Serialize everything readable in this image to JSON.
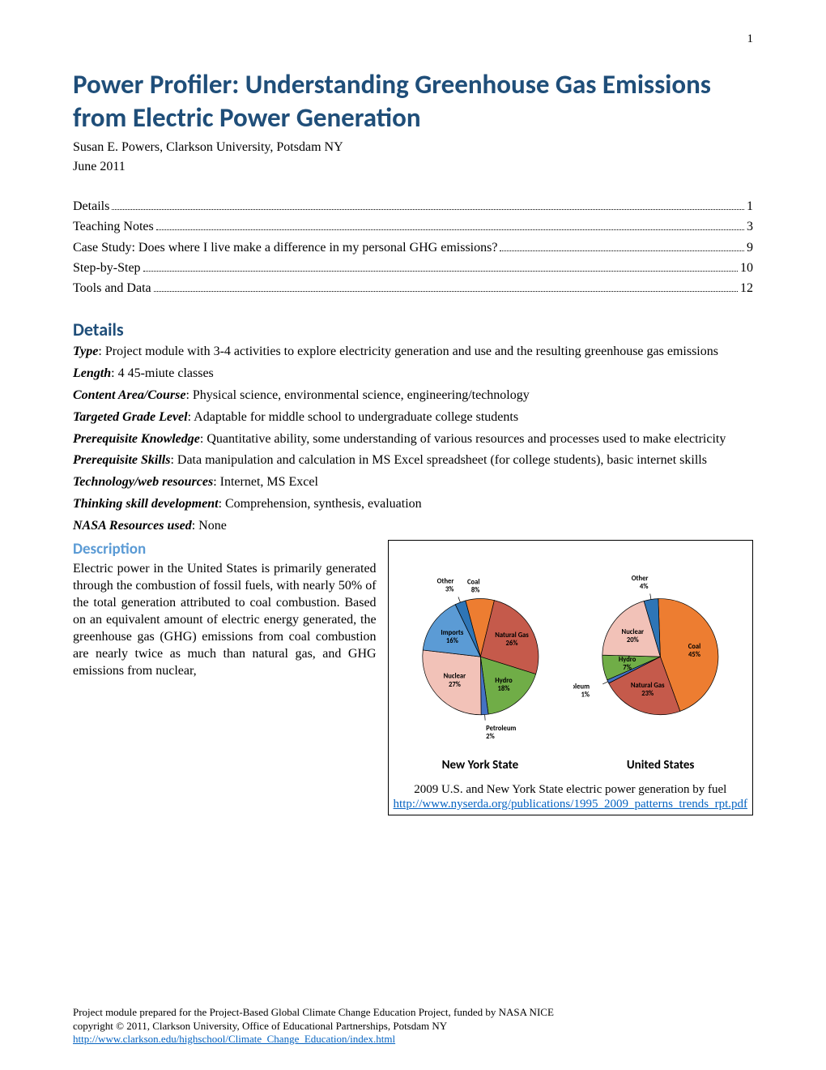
{
  "page_number": "1",
  "title": "Power Profiler: Understanding Greenhouse Gas Emissions from Electric Power Generation",
  "author": "Susan E. Powers, Clarkson University, Potsdam NY",
  "date": "June 2011",
  "toc": [
    {
      "label": "Details",
      "page": "1"
    },
    {
      "label": "Teaching Notes",
      "page": "3"
    },
    {
      "label": "Case Study: Does where I live make a difference in my personal GHG emissions?",
      "page": "9"
    },
    {
      "label": "Step-by-Step",
      "page": "10"
    },
    {
      "label": "Tools and Data",
      "page": "12"
    }
  ],
  "details_heading": "Details",
  "details": [
    {
      "label": "Type",
      "text": ":  Project module with 3-4 activities to explore electricity generation and use and the resulting greenhouse gas emissions"
    },
    {
      "label": "Length",
      "text": ":  4 45-miute classes"
    },
    {
      "label": "Content Area/Course",
      "text": ": Physical science, environmental science, engineering/technology"
    },
    {
      "label": "Targeted Grade Level",
      "text": ":  Adaptable for middle school to undergraduate college students"
    },
    {
      "label": "Prerequisite Knowledge",
      "text": ": Quantitative ability, some understanding of various resources and processes used to make electricity"
    },
    {
      "label": "Prerequisite Skills",
      "text": ": Data manipulation and calculation in MS Excel spreadsheet (for college students), basic internet skills"
    },
    {
      "label": "Technology/web resources",
      "text": ": Internet, MS Excel"
    },
    {
      "label": "Thinking skill development",
      "text": ": Comprehension, synthesis, evaluation"
    },
    {
      "label": "NASA Resources used",
      "text": ": None"
    }
  ],
  "description_heading": "Description",
  "description_text": "Electric power in the United States is primarily generated through the combustion of fossil fuels, with nearly 50% of the total generation attributed to coal combustion.  Based on an equivalent amount of electric energy generated, the greenhouse gas (GHG) emissions from coal combustion are nearly twice as much than natural gas, and GHG emissions from nuclear,",
  "charts": {
    "pie1": {
      "title": "New York State",
      "slices": [
        {
          "name": "Coal",
          "value": 8,
          "color": "#ed7d31",
          "label_r": 1.22,
          "leader": false
        },
        {
          "name": "Natural Gas",
          "value": 26,
          "color": "#c55a4b",
          "label_r": 0.62,
          "leader": false
        },
        {
          "name": "Hydro",
          "value": 18,
          "color": "#70ad47",
          "label_r": 0.62,
          "leader": false
        },
        {
          "name": "Petroleum",
          "value": 2,
          "color": "#4472c4",
          "label_r": 1.3,
          "leader": true
        },
        {
          "name": "Nuclear",
          "value": 27,
          "color": "#f2c2b8",
          "label_r": 0.6,
          "leader": false
        },
        {
          "name": "Imports",
          "value": 16,
          "color": "#5b9bd5",
          "label_r": 0.6,
          "leader": false
        },
        {
          "name": "Other",
          "value": 3,
          "color": "#2e75b6",
          "label_r": 1.32,
          "leader": true
        }
      ],
      "start_angle": -105,
      "radius": 100,
      "stroke": "#000000",
      "stroke_width": 1
    },
    "pie2": {
      "title": "United States",
      "slices": [
        {
          "name": "Coal",
          "value": 45,
          "color": "#ed7d31",
          "label_r": 0.6,
          "leader": false
        },
        {
          "name": "Natural Gas",
          "value": 23,
          "color": "#c55a4b",
          "label_r": 0.6,
          "leader": false
        },
        {
          "name": "Petroleum",
          "value": 1,
          "color": "#4472c4",
          "label_r": 1.35,
          "leader": true
        },
        {
          "name": "Hydro",
          "value": 7,
          "color": "#70ad47",
          "label_r": 0.58,
          "leader": false
        },
        {
          "name": "Nuclear",
          "value": 20,
          "color": "#f2c2b8",
          "label_r": 0.6,
          "leader": false
        },
        {
          "name": "Other",
          "value": 4,
          "color": "#2e75b6",
          "label_r": 1.3,
          "leader": true
        }
      ],
      "start_angle": -92,
      "radius": 100,
      "stroke": "#000000",
      "stroke_width": 1
    },
    "caption": "2009 U.S. and New York State electric power generation by fuel",
    "link": "http://www.nyserda.org/publications/1995_2009_patterns_trends_rpt.pdf"
  },
  "footer": {
    "line1": "Project module prepared for the Project-Based Global Climate Change Education Project, funded by NASA NICE",
    "line2": "copyright © 2011, Clarkson University, Office of Educational Partnerships, Potsdam NY",
    "link": "http://www.clarkson.edu/highschool/Climate_Change_Education/index.html"
  },
  "colors": {
    "heading": "#1f4e79",
    "subheading": "#5b9bd5",
    "link": "#0563c1"
  }
}
